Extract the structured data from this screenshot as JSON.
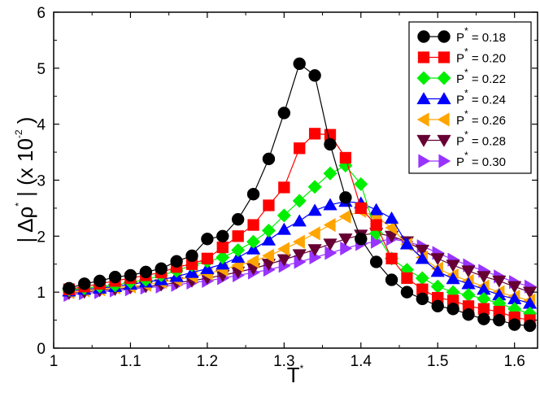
{
  "chart_data": {
    "type": "line",
    "xlabel": "T",
    "xlabel_superscript": "*",
    "ylabel_prefix": "| Δρ",
    "ylabel_superscript": "*",
    "ylabel_suffix": " | (x 10",
    "ylabel_exponent": "-2",
    "ylabel_close": " )",
    "xlim": [
      1.0,
      1.63
    ],
    "ylim": [
      0,
      6
    ],
    "x_ticks": [
      1,
      1.1,
      1.2,
      1.3,
      1.4,
      1.5,
      1.6
    ],
    "x_tick_labels": [
      "1",
      "1.1",
      "1.2",
      "1.3",
      "1.4",
      "1.5",
      "1.6"
    ],
    "y_ticks": [
      0,
      1,
      2,
      3,
      4,
      5,
      6
    ],
    "y_tick_labels": [
      "0",
      "1",
      "2",
      "3",
      "4",
      "5",
      "6"
    ],
    "grid": false,
    "legend_position": "top-right",
    "legend_prefix": "P",
    "legend_superscript": "*",
    "series": [
      {
        "name": "= 0.18",
        "color": "#000000",
        "marker": "circle",
        "x": [
          1.02,
          1.04,
          1.06,
          1.08,
          1.1,
          1.12,
          1.14,
          1.16,
          1.18,
          1.2,
          1.22,
          1.24,
          1.26,
          1.28,
          1.3,
          1.32,
          1.34,
          1.36,
          1.38,
          1.4,
          1.42,
          1.44,
          1.46,
          1.48,
          1.5,
          1.52,
          1.54,
          1.56,
          1.58,
          1.6,
          1.62
        ],
        "y": [
          1.07,
          1.15,
          1.2,
          1.27,
          1.3,
          1.36,
          1.42,
          1.55,
          1.65,
          1.95,
          2.0,
          2.3,
          2.75,
          3.38,
          4.2,
          5.08,
          4.87,
          3.64,
          2.69,
          1.95,
          1.54,
          1.22,
          1.0,
          0.88,
          0.75,
          0.7,
          0.6,
          0.52,
          0.5,
          0.42,
          0.4
        ]
      },
      {
        "name": "= 0.20",
        "color": "#ff0000",
        "marker": "square",
        "x": [
          1.02,
          1.04,
          1.06,
          1.08,
          1.1,
          1.12,
          1.14,
          1.16,
          1.18,
          1.2,
          1.22,
          1.24,
          1.26,
          1.28,
          1.3,
          1.32,
          1.34,
          1.36,
          1.38,
          1.4,
          1.42,
          1.44,
          1.46,
          1.48,
          1.5,
          1.52,
          1.54,
          1.56,
          1.58,
          1.6,
          1.62
        ],
        "y": [
          1.05,
          1.1,
          1.15,
          1.2,
          1.25,
          1.3,
          1.35,
          1.45,
          1.5,
          1.6,
          1.8,
          2.0,
          2.2,
          2.55,
          2.87,
          3.57,
          3.83,
          3.81,
          3.4,
          2.5,
          2.2,
          1.6,
          1.25,
          1.05,
          0.9,
          0.85,
          0.75,
          0.7,
          0.65,
          0.55,
          0.5
        ]
      },
      {
        "name": "= 0.22",
        "color": "#00ee00",
        "marker": "diamond",
        "x": [
          1.02,
          1.04,
          1.06,
          1.08,
          1.1,
          1.12,
          1.14,
          1.16,
          1.18,
          1.2,
          1.22,
          1.24,
          1.26,
          1.28,
          1.3,
          1.32,
          1.34,
          1.36,
          1.38,
          1.4,
          1.42,
          1.44,
          1.46,
          1.48,
          1.5,
          1.52,
          1.54,
          1.56,
          1.58,
          1.6,
          1.62
        ],
        "y": [
          1.04,
          1.07,
          1.1,
          1.12,
          1.18,
          1.22,
          1.3,
          1.38,
          1.48,
          1.55,
          1.62,
          1.75,
          1.9,
          2.1,
          2.37,
          2.63,
          2.88,
          3.12,
          3.26,
          2.93,
          2.05,
          1.6,
          1.4,
          1.25,
          1.1,
          1.0,
          0.95,
          0.88,
          0.8,
          0.7,
          0.62
        ]
      },
      {
        "name": "= 0.24",
        "color": "#0000ff",
        "marker": "triangle-up",
        "x": [
          1.02,
          1.04,
          1.06,
          1.08,
          1.1,
          1.12,
          1.14,
          1.16,
          1.18,
          1.2,
          1.22,
          1.24,
          1.26,
          1.28,
          1.3,
          1.32,
          1.34,
          1.36,
          1.38,
          1.4,
          1.42,
          1.44,
          1.46,
          1.48,
          1.5,
          1.52,
          1.54,
          1.56,
          1.58,
          1.6,
          1.62
        ],
        "y": [
          1.02,
          1.05,
          1.07,
          1.1,
          1.14,
          1.18,
          1.22,
          1.28,
          1.35,
          1.42,
          1.5,
          1.62,
          1.77,
          1.93,
          2.12,
          2.27,
          2.46,
          2.56,
          2.62,
          2.59,
          2.47,
          2.32,
          1.86,
          1.6,
          1.37,
          1.24,
          1.15,
          1.05,
          0.95,
          0.88,
          0.8
        ]
      },
      {
        "name": "= 0.26",
        "color": "#ffa500",
        "marker": "triangle-left",
        "x": [
          1.02,
          1.04,
          1.06,
          1.08,
          1.1,
          1.12,
          1.14,
          1.16,
          1.18,
          1.2,
          1.22,
          1.24,
          1.26,
          1.28,
          1.3,
          1.32,
          1.34,
          1.36,
          1.38,
          1.4,
          1.42,
          1.44,
          1.46,
          1.48,
          1.5,
          1.52,
          1.54,
          1.56,
          1.58,
          1.6,
          1.62
        ],
        "y": [
          1.0,
          1.03,
          1.05,
          1.08,
          1.1,
          1.13,
          1.18,
          1.22,
          1.28,
          1.33,
          1.4,
          1.48,
          1.55,
          1.65,
          1.77,
          1.9,
          2.05,
          2.2,
          2.35,
          2.45,
          2.35,
          2.15,
          1.85,
          1.62,
          1.42,
          1.3,
          1.2,
          1.1,
          1.0,
          0.92,
          0.85
        ]
      },
      {
        "name": "= 0.28",
        "color": "#660033",
        "marker": "triangle-down",
        "x": [
          1.02,
          1.04,
          1.06,
          1.08,
          1.1,
          1.12,
          1.14,
          1.16,
          1.18,
          1.2,
          1.22,
          1.24,
          1.26,
          1.28,
          1.3,
          1.32,
          1.34,
          1.36,
          1.38,
          1.4,
          1.42,
          1.44,
          1.46,
          1.48,
          1.5,
          1.52,
          1.54,
          1.56,
          1.58,
          1.6,
          1.62
        ],
        "y": [
          0.98,
          1.0,
          1.03,
          1.05,
          1.08,
          1.1,
          1.13,
          1.17,
          1.2,
          1.25,
          1.3,
          1.36,
          1.42,
          1.5,
          1.58,
          1.67,
          1.76,
          1.86,
          1.95,
          2.02,
          2.05,
          2.0,
          1.9,
          1.75,
          1.6,
          1.48,
          1.38,
          1.28,
          1.2,
          1.1,
          1.0
        ]
      },
      {
        "name": "= 0.30",
        "color": "#9933ff",
        "marker": "triangle-right",
        "x": [
          1.02,
          1.04,
          1.06,
          1.08,
          1.1,
          1.12,
          1.14,
          1.16,
          1.18,
          1.2,
          1.22,
          1.24,
          1.26,
          1.28,
          1.3,
          1.32,
          1.34,
          1.36,
          1.38,
          1.4,
          1.42,
          1.44,
          1.46,
          1.48,
          1.5,
          1.52,
          1.54,
          1.56,
          1.58,
          1.6,
          1.62
        ],
        "y": [
          0.95,
          0.98,
          1.0,
          1.03,
          1.05,
          1.08,
          1.1,
          1.13,
          1.17,
          1.2,
          1.25,
          1.3,
          1.35,
          1.4,
          1.47,
          1.54,
          1.62,
          1.7,
          1.78,
          1.86,
          1.9,
          1.95,
          1.9,
          1.82,
          1.7,
          1.58,
          1.48,
          1.38,
          1.28,
          1.18,
          1.1
        ]
      }
    ]
  }
}
